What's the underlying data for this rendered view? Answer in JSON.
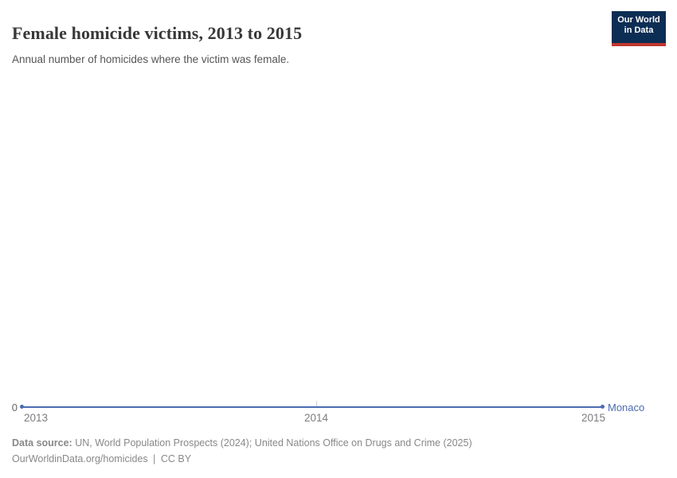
{
  "header": {
    "title": "Female homicide victims, 2013 to 2015",
    "subtitle": "Annual number of homicides where the victim was female.",
    "logo": {
      "line1": "Our World",
      "line2": "in Data"
    }
  },
  "chart_data": {
    "type": "line",
    "title": "Female homicide victims, 2013 to 2015",
    "subtitle": "Annual number of homicides where the victim was female.",
    "x": [
      2013,
      2014,
      2015
    ],
    "series": [
      {
        "name": "Monaco",
        "values": [
          0,
          0,
          0
        ],
        "color": "#4a6bb1"
      }
    ],
    "xlabel": "",
    "ylabel": "",
    "xlim": [
      2013,
      2015
    ],
    "ylim": [
      0,
      0
    ],
    "x_ticks": [
      "2013",
      "2014",
      "2015"
    ],
    "y_ticks": [
      "0"
    ],
    "grid": false,
    "legend_position": "end-of-line-right",
    "notes": "All plotted values are 0, so the series renders as a flat line on the zero axis"
  },
  "axis": {
    "zero_label": "0",
    "entity_label": "Monaco"
  },
  "footer": {
    "source_label": "Data source:",
    "source_text": "UN, World Population Prospects (2024); United Nations Office on Drugs and Crime (2025)",
    "link_text": "OurWorldinData.org/homicides",
    "separator": "|",
    "license_text": "CC BY"
  },
  "colors": {
    "accent": "#4a6bb1",
    "logo-bg": "#0d2e54",
    "logo-red": "#c0372e",
    "title": "#383838",
    "subtitle": "#555555",
    "tick-label": "#7d7d7d",
    "zero-label": "#666666",
    "footer": "#888888",
    "tick-mark": "#cfcfcf"
  }
}
